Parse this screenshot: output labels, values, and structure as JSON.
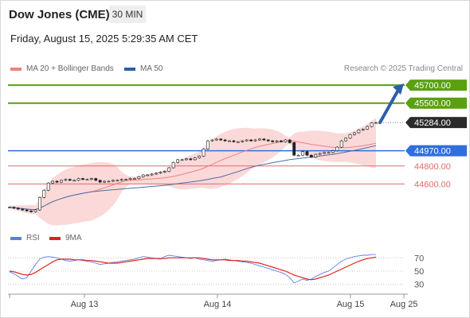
{
  "header": {
    "symbol": "Dow Jones (CME)",
    "timeframe": "30 MIN",
    "datetime": "Friday, August 15, 2025 5:29:35 AM CET"
  },
  "legend": {
    "ma20": "MA 20 + Bollinger Bands",
    "ma50": "MA 50",
    "credit": "Research © 2025 Trading Central"
  },
  "rsi_legend": {
    "rsi": "RSI",
    "ma9": "9MA"
  },
  "colors": {
    "candle": "#222222",
    "ma20": "#f08080",
    "ma50": "#4a6fa5",
    "band_fill": "#fbd9d9",
    "target": "#5aa010",
    "pivot": "#2f6fde",
    "support": "#e36a6a",
    "current": "#2b2b2b",
    "arrow": "#2d5fa8",
    "rsi": "#5b7fe0",
    "rsi_ma": "#e02020"
  },
  "chart_data": [
    {
      "type": "candlestick",
      "ylim": [
        44240,
        45790
      ],
      "x_ticks": [
        "Aug 13",
        "Aug 14",
        "Aug 15",
        "Aug 25"
      ],
      "current_price": {
        "label": "45284.00",
        "value": 45284
      },
      "levels": [
        {
          "label": "45700.00",
          "value": 45700,
          "kind": "target"
        },
        {
          "label": "45500.00",
          "value": 45500,
          "kind": "target"
        },
        {
          "label": "44970.00",
          "value": 44970,
          "kind": "pivot"
        },
        {
          "label": "44800.00",
          "value": 44800,
          "kind": "support"
        },
        {
          "label": "44600.00",
          "value": 44600,
          "kind": "support"
        }
      ],
      "close_series": [
        44340,
        44330,
        44320,
        44310,
        44300,
        44290,
        44310,
        44450,
        44530,
        44610,
        44630,
        44620,
        44640,
        44650,
        44640,
        44640,
        44660,
        44650,
        44650,
        44660,
        44640,
        44620,
        44630,
        44630,
        44640,
        44640,
        44650,
        44650,
        44660,
        44660,
        44680,
        44700,
        44700,
        44710,
        44720,
        44730,
        44740,
        44780,
        44840,
        44870,
        44870,
        44880,
        44870,
        44890,
        44910,
        44990,
        45080,
        45090,
        45100,
        45090,
        45080,
        45080,
        45070,
        45070,
        45080,
        45090,
        45080,
        45090,
        45100,
        45090,
        45080,
        45070,
        45080,
        45070,
        45090,
        45060,
        44920,
        44920,
        44960,
        44920,
        44900,
        44930,
        44940,
        44950,
        44950,
        44970,
        45010,
        45080,
        45110,
        45150,
        45170,
        45200,
        45210,
        45240,
        45280,
        45284
      ]
    },
    {
      "type": "line",
      "title": "RSI",
      "ylim": [
        20,
        80
      ],
      "y_ticks": [
        70,
        50,
        30
      ],
      "series": [
        {
          "name": "RSI",
          "values": [
            49,
            46,
            42,
            38,
            40,
            50,
            60,
            68,
            71,
            72,
            71,
            70,
            68,
            66,
            65,
            66,
            67,
            66,
            65,
            64,
            62,
            60,
            61,
            62,
            63,
            64,
            65,
            66,
            67,
            68,
            70,
            72,
            71,
            70,
            69,
            68,
            72,
            74,
            73,
            72,
            71,
            70,
            69,
            70,
            68,
            67,
            66,
            65,
            66,
            67,
            68,
            67,
            66,
            65,
            64,
            63,
            62,
            60,
            58,
            56,
            54,
            52,
            50,
            48,
            45,
            40,
            32,
            35,
            38,
            36,
            38,
            42,
            45,
            48,
            50,
            55,
            60,
            65,
            68,
            70,
            72,
            73,
            74,
            74,
            75,
            75
          ]
        },
        {
          "name": "9MA",
          "values": [
            50,
            49,
            47,
            45,
            44,
            45,
            48,
            52,
            56,
            60,
            64,
            67,
            68,
            68,
            68,
            67,
            67,
            67,
            66,
            66,
            65,
            64,
            63,
            62,
            62,
            62,
            63,
            64,
            65,
            66,
            67,
            68,
            69,
            69,
            69,
            69,
            69,
            70,
            70,
            70,
            70,
            70,
            70,
            70,
            70,
            69,
            68,
            67,
            67,
            67,
            67,
            66,
            66,
            66,
            65,
            65,
            64,
            63,
            62,
            60,
            58,
            56,
            54,
            52,
            50,
            47,
            44,
            42,
            40,
            38,
            37,
            38,
            40,
            42,
            44,
            47,
            50,
            53,
            56,
            59,
            62,
            65,
            67,
            69,
            70,
            71
          ]
        }
      ]
    }
  ]
}
